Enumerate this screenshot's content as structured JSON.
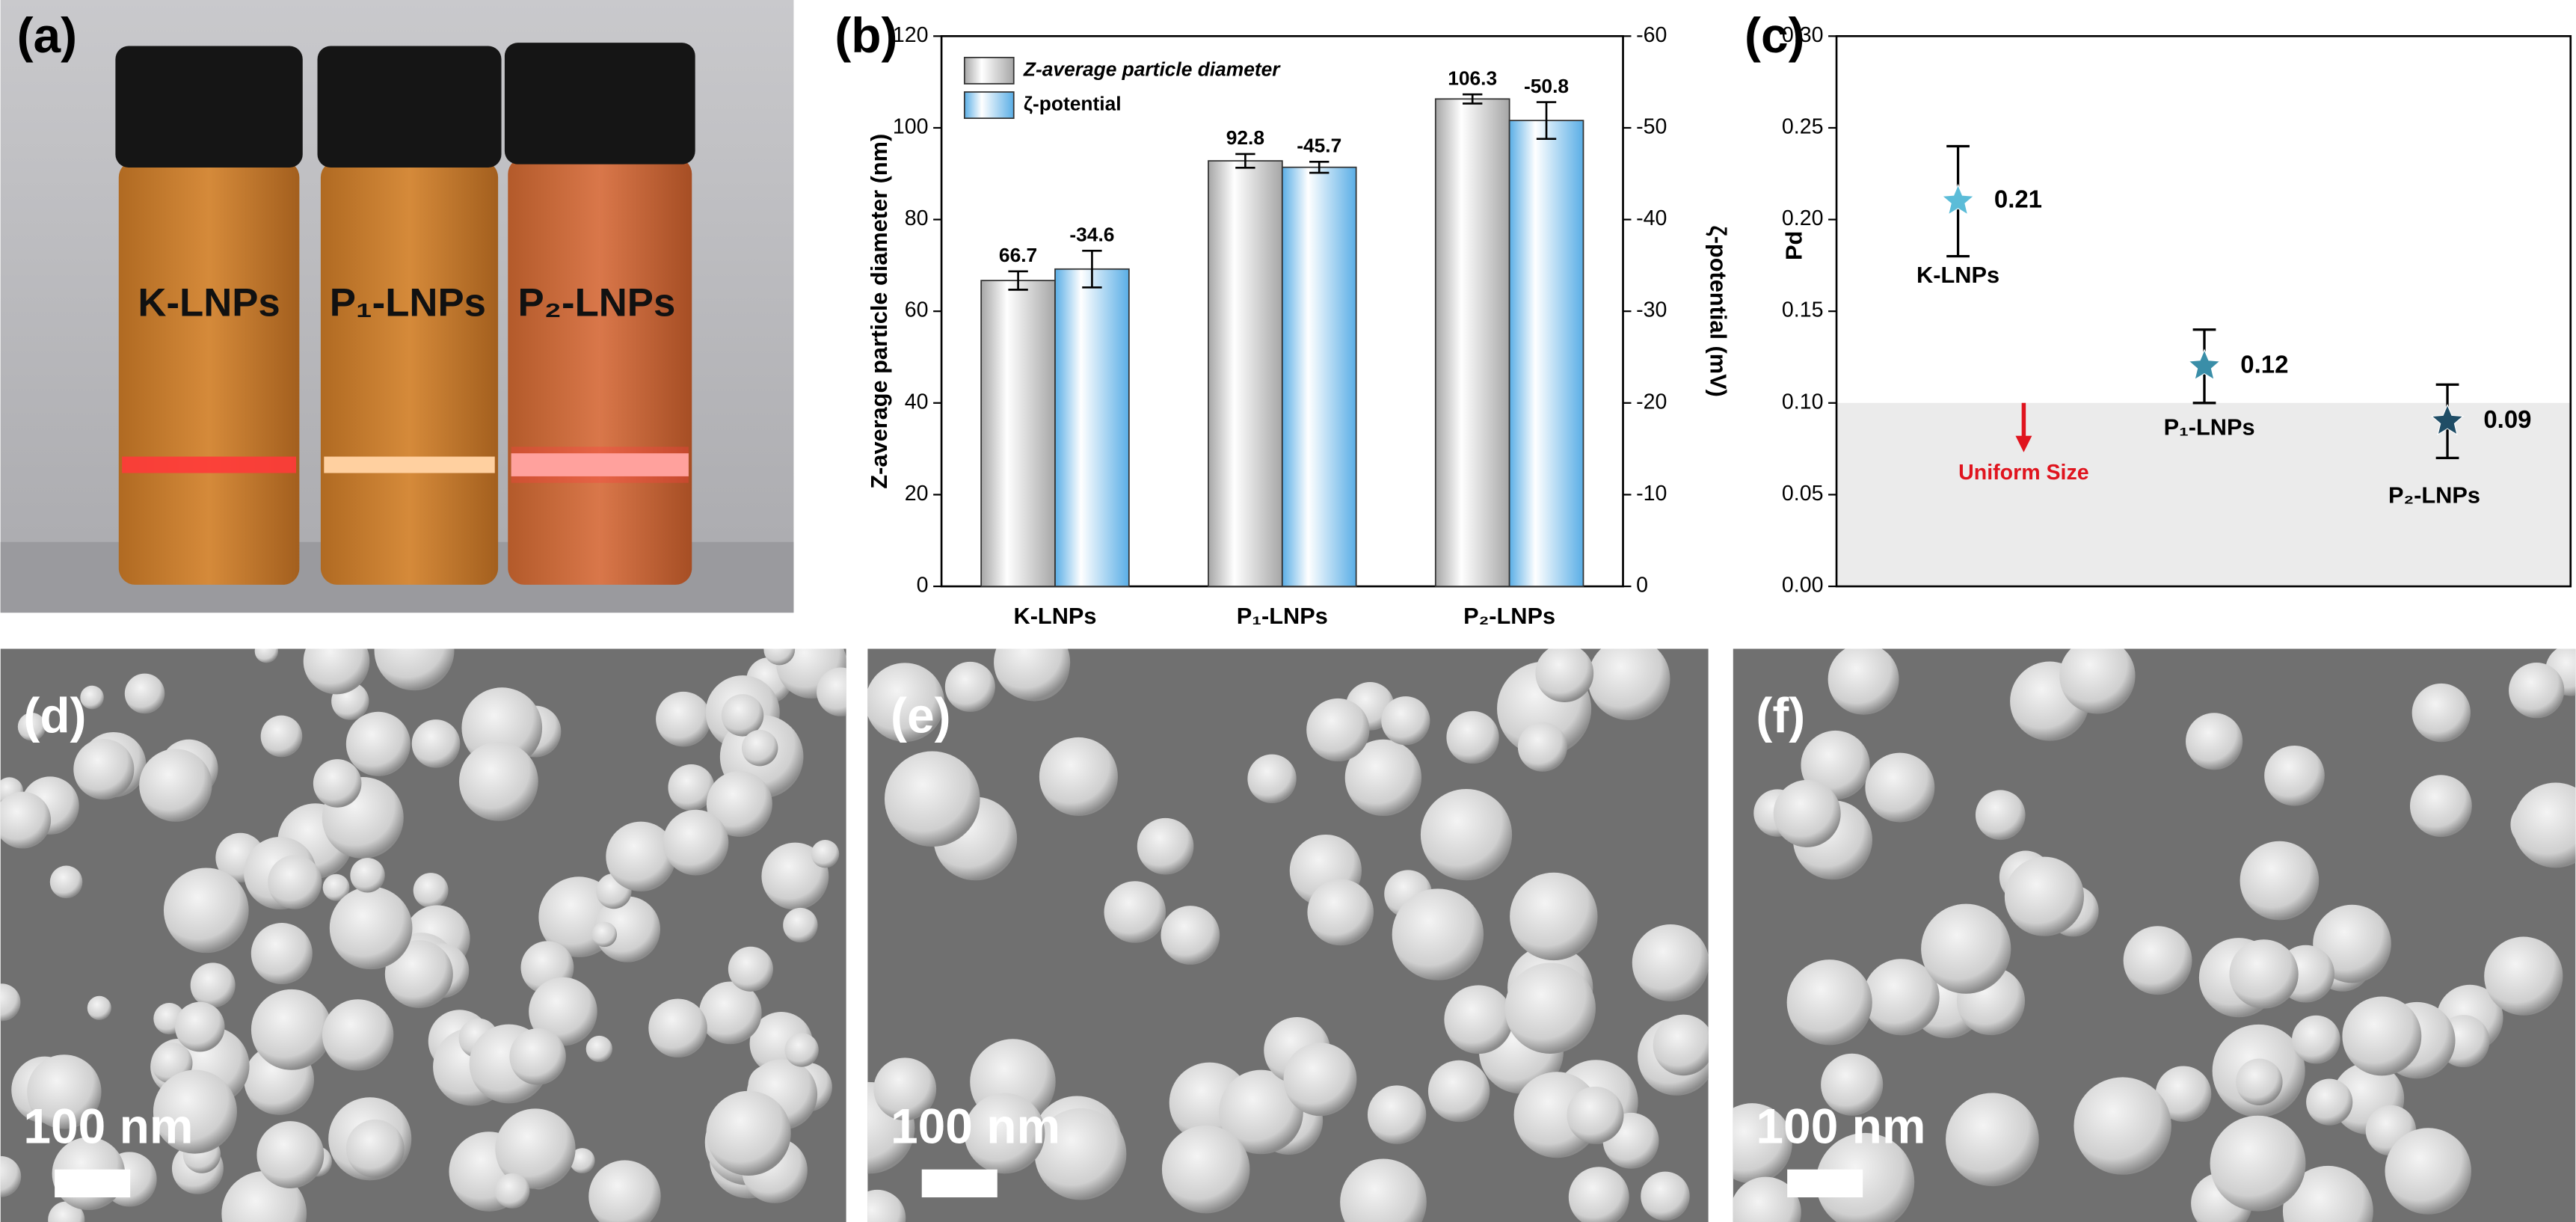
{
  "panel_labels": [
    "(a)",
    "(b)",
    "(c)",
    "(d)",
    "(e)",
    "(f)"
  ],
  "photo": {
    "labels": [
      "K-LNPs",
      "P₁-LNPs",
      "P₂-LNPs"
    ]
  },
  "chart_data": [
    {
      "type": "bar",
      "categories": [
        "K-LNPs",
        "P₁-LNPs",
        "P₂-LNPs"
      ],
      "ylabel": "Z-average particle diameter (nm)",
      "y2label": "ζ-potential (mV)",
      "ylim": [
        0,
        120
      ],
      "yticks": [
        0,
        20,
        40,
        60,
        80,
        100,
        120
      ],
      "y2lim": [
        0,
        -60
      ],
      "y2ticks": [
        0,
        -10,
        -20,
        -30,
        -40,
        -50,
        -60
      ],
      "series": [
        {
          "name": "Z-average particle diameter",
          "color": "#a6a6a6",
          "values": [
            66.7,
            92.8,
            106.3
          ],
          "errors": [
            2,
            1.5,
            1
          ]
        },
        {
          "name": "ζ-potential",
          "color": "#5aaee6",
          "axis": "y2",
          "values": [
            -34.6,
            -45.7,
            -50.8
          ],
          "errors": [
            2,
            0.6,
            2
          ]
        }
      ]
    },
    {
      "type": "scatter",
      "categories": [
        "K-LNPs",
        "P₁-LNPs",
        "P₂-LNPs"
      ],
      "ylabel": "Pd",
      "ylim": [
        0,
        0.3
      ],
      "yticks": [
        {
          "value": 0,
          "label": "0.00"
        },
        {
          "value": 0.05,
          "label": "0.05"
        },
        {
          "value": 0.1,
          "label": "0.10"
        },
        {
          "value": 0.15,
          "label": "0.15"
        },
        {
          "value": 0.2,
          "label": "0.20"
        },
        {
          "value": 0.25,
          "label": "0.25"
        },
        {
          "value": 0.3,
          "label": "0.30"
        }
      ],
      "values": [
        0.21,
        0.12,
        0.09
      ],
      "errors": [
        0.03,
        0.02,
        0.02
      ],
      "colors": [
        "#5bbcd8",
        "#3a8ea8",
        "#1f4d66"
      ],
      "shade_below": 0.1,
      "annotation": "Uniform Size"
    }
  ],
  "sem": {
    "scale_bar_labels": [
      "100 nm",
      "100 nm",
      "100 nm"
    ]
  }
}
